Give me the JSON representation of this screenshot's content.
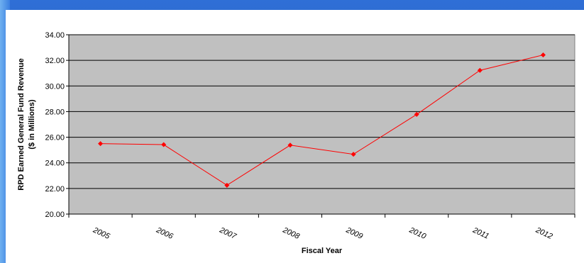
{
  "chart_data": {
    "type": "line",
    "title": "",
    "xlabel": "Fiscal Year",
    "ylabel_line1": "RPD Earned General Fund Revenue",
    "ylabel_line2": "($ in Millions)",
    "categories": [
      "2005",
      "2006",
      "2007",
      "2008",
      "2009",
      "2010",
      "2011",
      "2012"
    ],
    "series": [
      {
        "values": [
          25.5,
          25.42,
          22.25,
          25.38,
          24.67,
          27.78,
          31.22,
          32.42
        ]
      }
    ],
    "ylim": [
      20,
      34
    ],
    "yticks": [
      "20.00",
      "22.00",
      "24.00",
      "26.00",
      "28.00",
      "30.00",
      "32.00",
      "34.00"
    ],
    "grid": true,
    "colors": {
      "plot_bg": "#c0c0c0",
      "line": "#ff0000",
      "marker": "#ff0000",
      "gridline": "#000000"
    }
  }
}
